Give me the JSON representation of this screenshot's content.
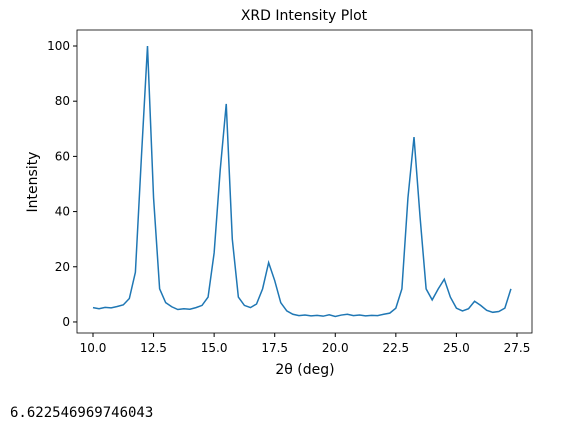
{
  "chart_data": {
    "type": "line",
    "title": "XRD Intensity Plot",
    "xlabel": "2θ (deg)",
    "ylabel": "Intensity",
    "color": "#1f77b4",
    "x": [
      10,
      10.25,
      10.5,
      10.75,
      11,
      11.25,
      11.5,
      11.75,
      12,
      12.25,
      12.5,
      12.75,
      13,
      13.25,
      13.5,
      13.75,
      14,
      14.25,
      14.5,
      14.75,
      15,
      15.25,
      15.5,
      15.75,
      16,
      16.25,
      16.5,
      16.75,
      17,
      17.25,
      17.5,
      17.75,
      18,
      18.25,
      18.5,
      18.75,
      19,
      19.25,
      19.5,
      19.75,
      20,
      20.25,
      20.5,
      20.75,
      21,
      21.25,
      21.5,
      21.75,
      22,
      22.25,
      22.5,
      22.75,
      23,
      23.25,
      23.5,
      23.75,
      24,
      24.25,
      24.5,
      24.75,
      25,
      25.25,
      25.5,
      25.75,
      26,
      26.25,
      26.5,
      26.75,
      27,
      27.25
    ],
    "values": [
      5.2,
      4.8,
      5.3,
      5.1,
      5.6,
      6.2,
      8.5,
      18,
      60,
      100,
      45,
      12,
      7,
      5.5,
      4.5,
      4.8,
      4.6,
      5.2,
      6,
      9,
      25,
      55,
      79,
      30,
      9,
      6,
      5.2,
      6.5,
      12,
      21.5,
      15,
      7,
      4,
      2.8,
      2.3,
      2.5,
      2.2,
      2.4,
      2.1,
      2.6,
      2,
      2.5,
      2.8,
      2.3,
      2.5,
      2.2,
      2.4,
      2.3,
      2.8,
      3.2,
      5,
      12,
      45,
      67,
      38,
      12,
      8,
      12,
      15.5,
      9,
      5,
      4,
      4.8,
      7.5,
      6,
      4.2,
      3.5,
      3.8,
      5,
      12
    ],
    "xlim": [
      9.34,
      28.12
    ],
    "ylim": [
      -4,
      105.8
    ],
    "xticks": [
      {
        "value": 10,
        "label": "10.0"
      },
      {
        "value": 12.5,
        "label": "12.5"
      },
      {
        "value": 15,
        "label": "15.0"
      },
      {
        "value": 17.5,
        "label": "17.5"
      },
      {
        "value": 20,
        "label": "20.0"
      },
      {
        "value": 22.5,
        "label": "22.5"
      },
      {
        "value": 25,
        "label": "25.0"
      },
      {
        "value": 27.5,
        "label": "27.5"
      }
    ],
    "yticks": [
      0,
      20,
      40,
      60,
      80,
      100
    ]
  },
  "output_text": "6.622546969746043"
}
